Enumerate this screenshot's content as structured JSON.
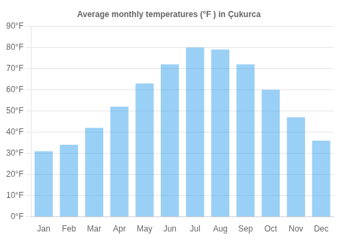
{
  "chart_data": {
    "type": "bar",
    "title": "Average monthly temperatures (°F ) in Çukurca",
    "categories": [
      "Jan",
      "Feb",
      "Mar",
      "Apr",
      "May",
      "Jun",
      "Jul",
      "Aug",
      "Sep",
      "Oct",
      "Nov",
      "Dec"
    ],
    "values": [
      31,
      34,
      42,
      52,
      63,
      72,
      80,
      79,
      72,
      60,
      47,
      36
    ],
    "ylim": [
      0,
      90
    ],
    "yticks": [
      {
        "value": 0,
        "label": "0°F"
      },
      {
        "value": 10,
        "label": "10°F"
      },
      {
        "value": 20,
        "label": "20°F"
      },
      {
        "value": 30,
        "label": "30°F"
      },
      {
        "value": 40,
        "label": "40°F"
      },
      {
        "value": 50,
        "label": "50°F"
      },
      {
        "value": 60,
        "label": "60°F"
      },
      {
        "value": 70,
        "label": "70°F"
      },
      {
        "value": 80,
        "label": "80°F"
      },
      {
        "value": 90,
        "label": "90°F"
      }
    ],
    "grid": true
  }
}
